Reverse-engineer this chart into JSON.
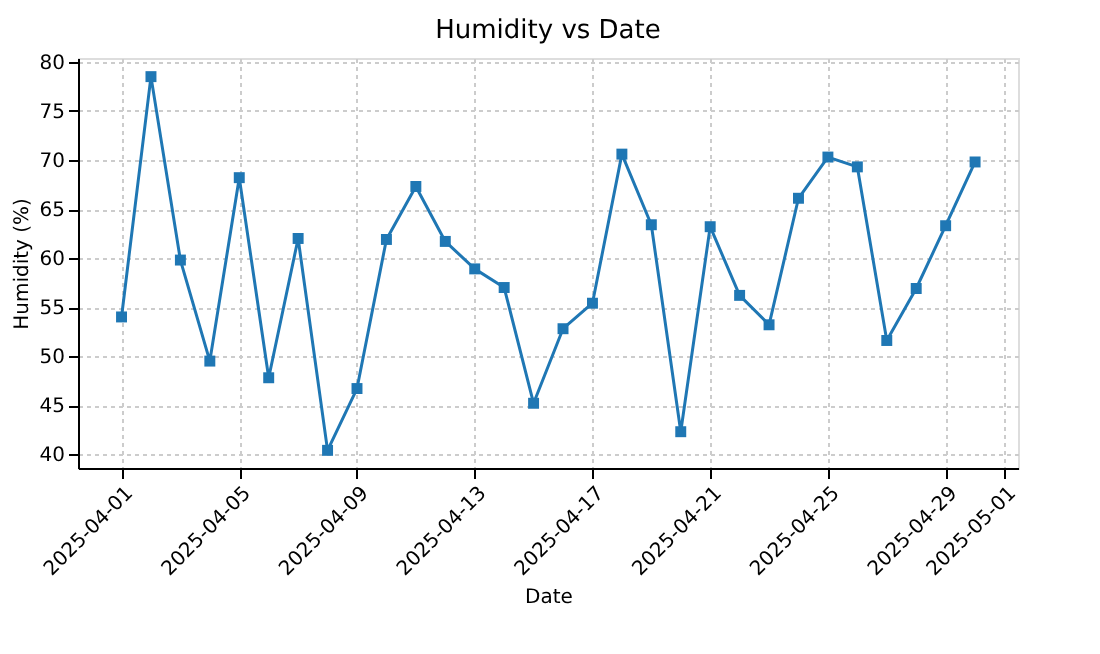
{
  "chart_data": {
    "type": "line",
    "title": "Humidity vs Date",
    "xlabel": "Date",
    "ylabel": "Humidity (%)",
    "x": [
      "2025-04-01",
      "2025-04-02",
      "2025-04-03",
      "2025-04-04",
      "2025-04-05",
      "2025-04-06",
      "2025-04-07",
      "2025-04-08",
      "2025-04-09",
      "2025-04-10",
      "2025-04-11",
      "2025-04-12",
      "2025-04-13",
      "2025-04-14",
      "2025-04-15",
      "2025-04-16",
      "2025-04-17",
      "2025-04-18",
      "2025-04-19",
      "2025-04-20",
      "2025-04-21",
      "2025-04-22",
      "2025-04-23",
      "2025-04-24",
      "2025-04-25",
      "2025-04-26",
      "2025-04-27",
      "2025-04-28",
      "2025-04-29",
      "2025-04-30"
    ],
    "series": [
      {
        "color": "#1f77b4",
        "values": [
          54.0,
          78.5,
          59.8,
          49.5,
          68.2,
          47.8,
          62.0,
          40.4,
          46.7,
          61.9,
          67.3,
          61.7,
          58.9,
          57.0,
          45.2,
          52.8,
          55.4,
          70.6,
          63.4,
          42.3,
          63.2,
          56.2,
          53.2,
          66.1,
          70.3,
          69.3,
          51.6,
          56.9,
          63.3,
          69.8
        ]
      }
    ],
    "xlim": [
      "2025-03-30T12:30",
      "2025-05-01T11:00"
    ],
    "xticks": [
      "2025-04-01",
      "2025-04-05",
      "2025-04-09",
      "2025-04-13",
      "2025-04-17",
      "2025-04-21",
      "2025-04-25",
      "2025-04-29",
      "2025-05-01"
    ],
    "ylim": [
      38.6,
      80.4
    ],
    "yticks": [
      40,
      45,
      50,
      55,
      60,
      65,
      70,
      75,
      80
    ],
    "grid": true,
    "marker": "square",
    "line_style": "solid"
  }
}
